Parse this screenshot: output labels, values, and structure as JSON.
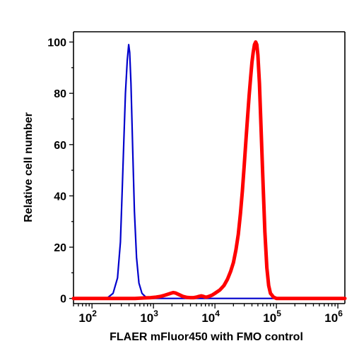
{
  "chart_data": {
    "type": "line",
    "xlabel": "FLAER mFluor450 with FMO control",
    "ylabel": "Relative cell number",
    "x_scale": "log",
    "xlim": [
      50,
      1300000
    ],
    "ylim": [
      -2,
      104
    ],
    "x_tick_labels": [
      {
        "base": "10",
        "exp": "2",
        "value": 100
      },
      {
        "base": "10",
        "exp": "3",
        "value": 1000
      },
      {
        "base": "10",
        "exp": "4",
        "value": 10000
      },
      {
        "base": "10",
        "exp": "5",
        "value": 100000
      },
      {
        "base": "10",
        "exp": "6",
        "value": 1000000
      }
    ],
    "y_ticks": [
      0,
      20,
      40,
      60,
      80,
      100
    ],
    "grid": false,
    "series": [
      {
        "color": "#0000cc",
        "line_width": 2.2,
        "x": [
          50,
          120,
          180,
          220,
          260,
          290,
          310,
          330,
          350,
          375,
          395,
          410,
          430,
          460,
          490,
          530,
          580,
          650,
          730,
          800,
          900,
          1000,
          1300,
          1300000
        ],
        "y": [
          0,
          0,
          0.3,
          2,
          8,
          22,
          42,
          62,
          80,
          93,
          99,
          96,
          84,
          58,
          34,
          16,
          6,
          2,
          0.8,
          0.3,
          0,
          0,
          0,
          0
        ]
      },
      {
        "color": "#ff0000",
        "line_width": 5,
        "x": [
          50,
          300,
          500,
          700,
          900,
          1100,
          1300,
          1500,
          1700,
          1900,
          2100,
          2300,
          2600,
          3000,
          3500,
          4000,
          4500,
          5000,
          5500,
          6000,
          6500,
          7000,
          7500,
          8000,
          9000,
          10000,
          12000,
          14000,
          16000,
          18000,
          20000,
          22000,
          24000,
          26000,
          28000,
          30000,
          32000,
          34000,
          36000,
          38000,
          40000,
          42000,
          44000,
          46000,
          48000,
          50000,
          53000,
          56000,
          60000,
          65000,
          70000,
          75000,
          80000,
          90000,
          100000,
          120000,
          1300000
        ],
        "y": [
          0,
          0,
          0,
          0.2,
          0.3,
          0.5,
          0.8,
          1.2,
          1.6,
          2,
          2.3,
          2.1,
          1.5,
          0.8,
          0.4,
          0.3,
          0.3,
          0.5,
          0.8,
          1,
          0.8,
          0.5,
          0.6,
          0.8,
          1.3,
          2,
          3.3,
          5,
          7.5,
          10.5,
          14,
          19,
          25,
          33,
          42,
          52,
          62,
          71,
          79,
          86,
          92,
          96,
          99,
          100,
          99,
          95,
          84,
          68,
          48,
          26,
          12,
          5,
          2,
          0.5,
          0,
          0,
          0
        ]
      }
    ]
  }
}
